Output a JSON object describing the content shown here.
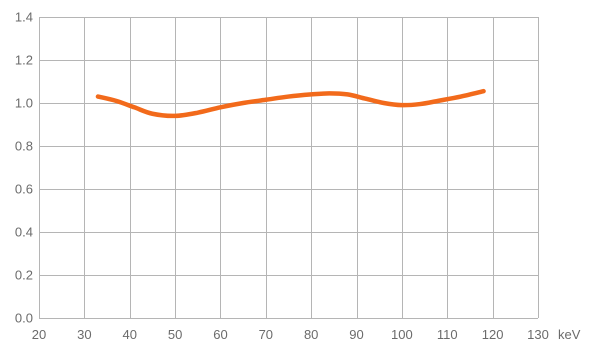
{
  "chart_data": {
    "type": "line",
    "title": "",
    "xlabel": "keV",
    "ylabel": "",
    "xlim": [
      20,
      130
    ],
    "ylim": [
      0,
      1.4
    ],
    "x_ticks": [
      "20",
      "30",
      "40",
      "50",
      "60",
      "70",
      "80",
      "90",
      "100",
      "110",
      "120",
      "130"
    ],
    "y_ticks": [
      "0.0",
      "0.2",
      "0.4",
      "0.6",
      "0.8",
      "1.0",
      "1.2",
      "1.4"
    ],
    "grid": true,
    "legend": "none",
    "series": [
      {
        "color": "#f26a1b",
        "x": [
          33,
          37,
          41,
          45,
          50,
          55,
          60,
          65,
          70,
          75,
          80,
          84,
          88,
          92,
          96,
          100,
          104,
          108,
          113,
          118
        ],
        "y": [
          1.03,
          1.01,
          0.98,
          0.95,
          0.94,
          0.955,
          0.98,
          1.0,
          1.015,
          1.03,
          1.04,
          1.045,
          1.04,
          1.02,
          1.0,
          0.99,
          0.995,
          1.01,
          1.03,
          1.055
        ]
      }
    ]
  }
}
